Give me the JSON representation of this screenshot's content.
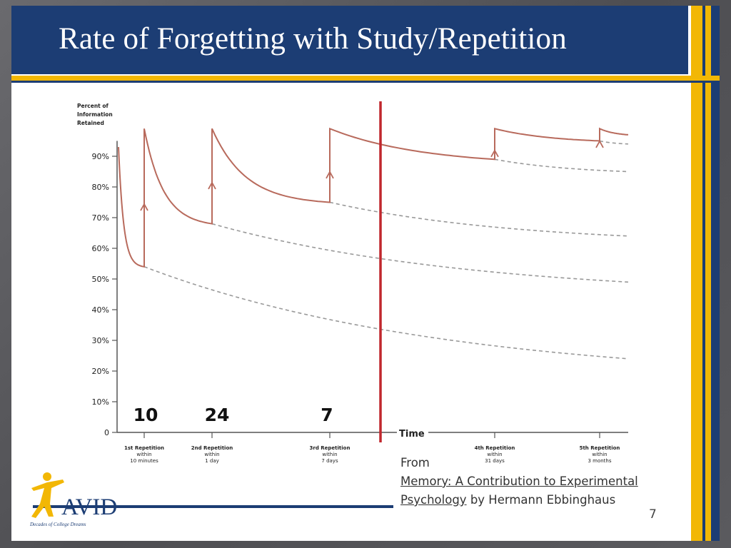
{
  "slide": {
    "title": "Rate of Forgetting with Study/Repetition",
    "page_number": "7",
    "source_from": "From",
    "source_link_1": "Memory: A Contribution to Experimental",
    "source_link_2": "Psychology",
    "source_by": "by Hermann Ebbinghaus"
  },
  "logo": {
    "name": "AVID",
    "tagline": "Decades of College Dreams"
  },
  "colors": {
    "navy": "#1c3d74",
    "gold": "#f2b705",
    "curve": "#b86a5c",
    "marker": "#c0272d",
    "dashed": "#999999"
  },
  "chart_data": {
    "type": "line",
    "ylabel_lines": [
      "Percent of",
      "Information",
      "Retained"
    ],
    "xlabel": "Time",
    "ylim": [
      0,
      95
    ],
    "y_ticks": [
      {
        "v": 0,
        "label": "0"
      },
      {
        "v": 10,
        "label": "10%"
      },
      {
        "v": 20,
        "label": "20%"
      },
      {
        "v": 30,
        "label": "30%"
      },
      {
        "v": 40,
        "label": "40%"
      },
      {
        "v": 50,
        "label": "50%"
      },
      {
        "v": 60,
        "label": "60%"
      },
      {
        "v": 70,
        "label": "70%"
      },
      {
        "v": 80,
        "label": "80%"
      },
      {
        "v": 90,
        "label": "90%"
      }
    ],
    "repetitions": [
      {
        "label": "1st Repetition",
        "l2": "within",
        "l3": "10 minutes",
        "annotation": "10",
        "before": 54,
        "after": 99
      },
      {
        "label": "2nd Repetition",
        "l2": "within",
        "l3": "1 day",
        "annotation": "24",
        "before": 68,
        "after": 99
      },
      {
        "label": "3rd Repetition",
        "l2": "within",
        "l3": "7 days",
        "annotation": "7",
        "before": 75,
        "after": 99
      },
      {
        "label": "4th Repetition",
        "l2": "within",
        "l3": "31 days",
        "annotation": "",
        "before": 89,
        "after": 99
      },
      {
        "label": "5th Repetition",
        "l2": "within",
        "l3": "3 months",
        "annotation": "",
        "before": 95,
        "after": 99
      }
    ],
    "initial": 93,
    "dashed_end_values": [
      24,
      49,
      64,
      85,
      94
    ],
    "marker_line": "red vertical line between 3rd and 4th repetition"
  }
}
